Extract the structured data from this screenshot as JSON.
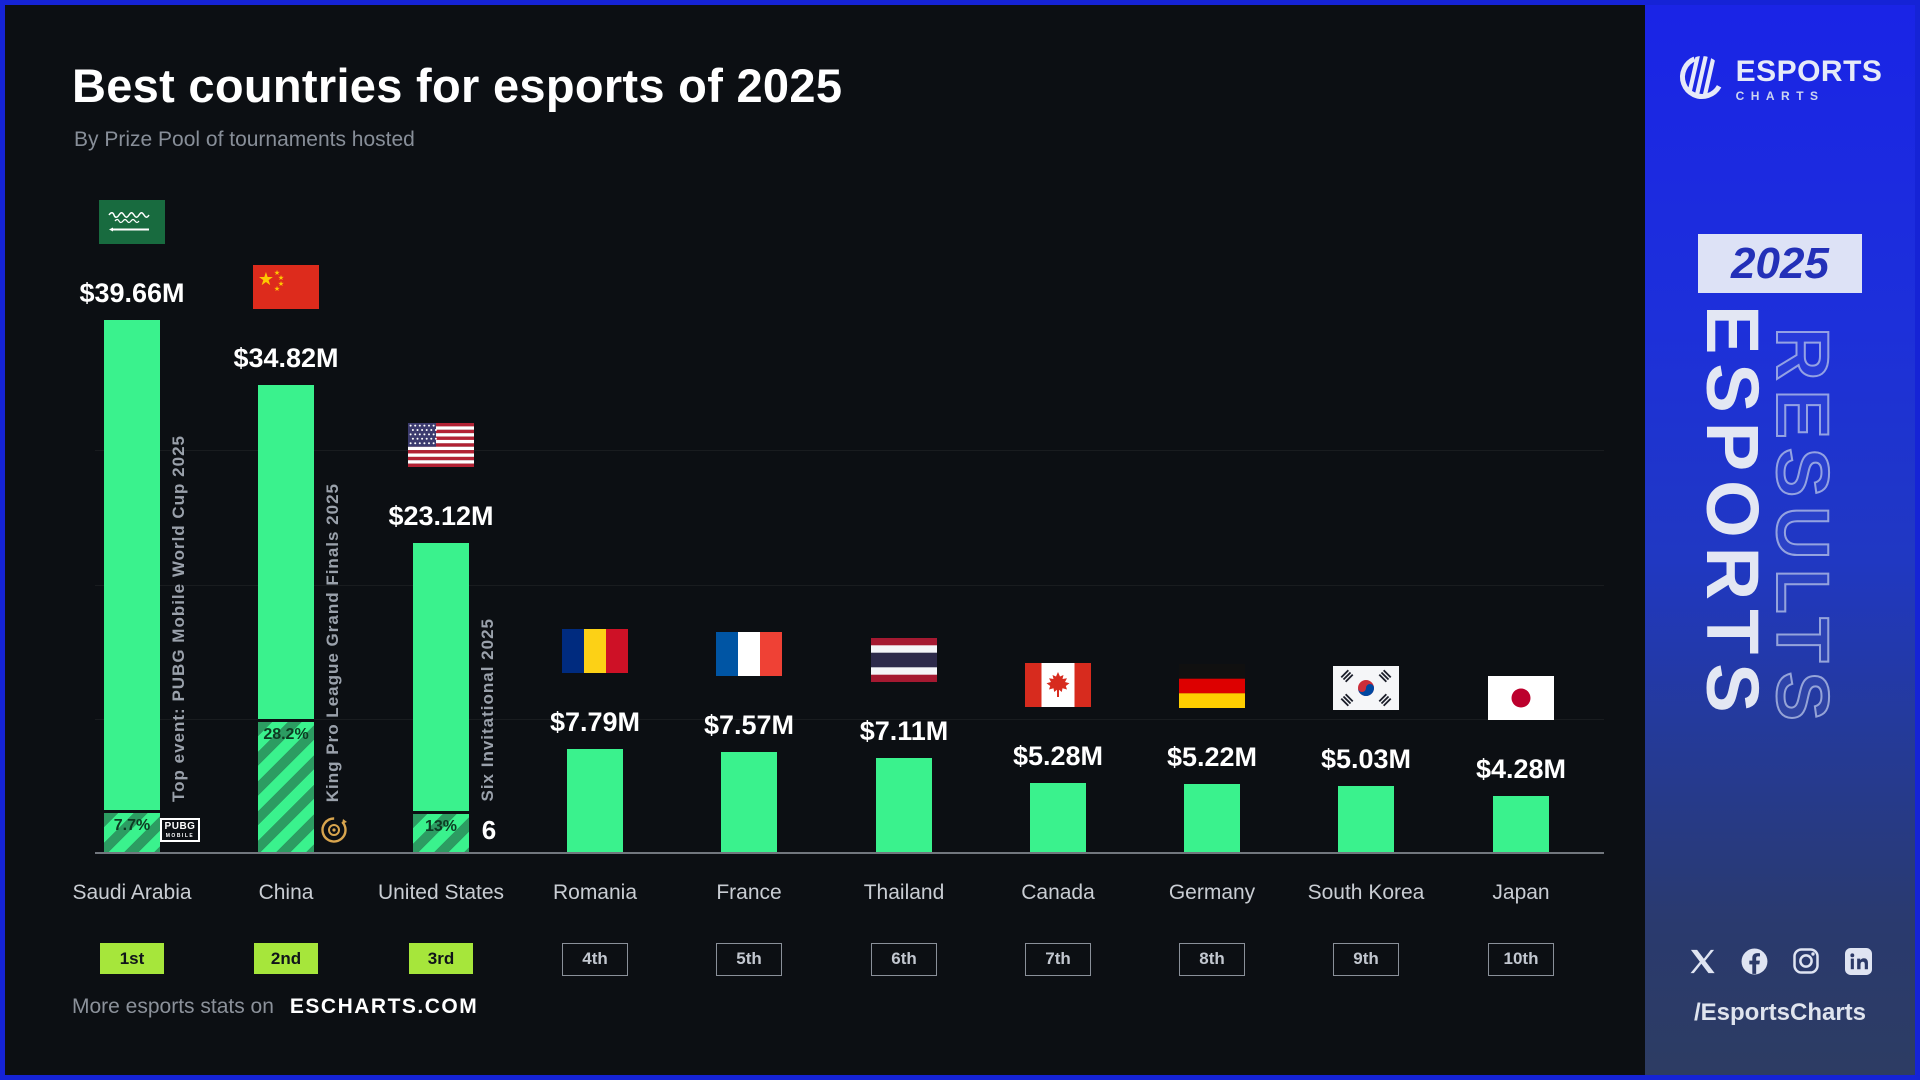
{
  "header": {
    "title": "Best countries for esports of 2025",
    "subtitle": "By Prize Pool of tournaments hosted"
  },
  "footer": {
    "text": "More esports stats on",
    "site": "ESCHARTS.COM"
  },
  "sidebar": {
    "logo": {
      "name": "ESPORTS",
      "sub": "CHARTS"
    },
    "year_badge": "2025",
    "watermark_solid": "ESPORTS",
    "watermark_outline": "RESULTS",
    "handle": "/EsportsCharts",
    "social": [
      "x-icon",
      "facebook-icon",
      "instagram-icon",
      "linkedin-icon"
    ]
  },
  "chart_data": {
    "type": "bar",
    "title": "Best countries for esports of 2025",
    "subtitle": "By Prize Pool of tournaments hosted",
    "unit": "USD millions",
    "ylim": [
      0,
      40
    ],
    "gridline_step": 10,
    "grid": "horizontal-faint",
    "legend": "none",
    "categories": [
      "Saudi Arabia",
      "China",
      "United States",
      "Romania",
      "France",
      "Thailand",
      "Canada",
      "Germany",
      "South Korea",
      "Japan"
    ],
    "values": [
      39.66,
      34.82,
      23.12,
      7.79,
      7.57,
      7.11,
      5.28,
      5.22,
      5.03,
      4.28
    ],
    "value_labels": [
      "$39.66M",
      "$34.82M",
      "$23.12M",
      "$7.79M",
      "$7.57M",
      "$7.11M",
      "$5.28M",
      "$5.22M",
      "$5.03M",
      "$4.28M"
    ],
    "ranks": [
      "1st",
      "2nd",
      "3rd",
      "4th",
      "5th",
      "6th",
      "7th",
      "8th",
      "9th",
      "10th"
    ],
    "highlighted_ranks": 3,
    "flags": [
      "saudi-arabia",
      "china",
      "united-states",
      "romania",
      "france",
      "thailand",
      "canada",
      "germany",
      "south-korea",
      "japan"
    ],
    "top_events": [
      {
        "bar_index": 0,
        "label": "Top event: PUBG Mobile World Cup 2025",
        "share": 0.077,
        "share_label": "7.7%",
        "logo": "pubg-mobile-logo",
        "logo_text": "PUBG",
        "logo_sub": "MOBILE"
      },
      {
        "bar_index": 1,
        "label": "King Pro League Grand Finals 2025",
        "share": 0.282,
        "share_label": "28.2%",
        "logo": "king-pro-league-logo"
      },
      {
        "bar_index": 2,
        "label": "Six Invitational 2025",
        "share": 0.13,
        "share_label": "13%",
        "logo": "six-invitational-logo",
        "logo_text": "6"
      }
    ]
  },
  "colors": {
    "background": "#0c0f13",
    "bar": "#3af28d",
    "hatch_stripe": "#2c9c62",
    "rank_highlight": "#a6e63b",
    "frame_border": "#1523d6",
    "sidebar_top": "#1a24e6",
    "sidebar_bottom": "#2d3c63",
    "value_text": "#ffffff",
    "muted_text": "#878e98"
  }
}
